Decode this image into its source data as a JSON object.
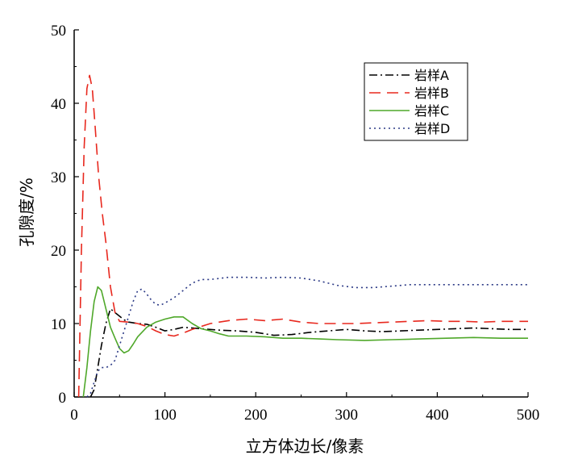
{
  "chart_data": {
    "type": "line",
    "xlabel": "立方体边长/像素",
    "ylabel": "孔隙度/%",
    "xlim": [
      0,
      500
    ],
    "ylim": [
      0,
      50
    ],
    "xticks": [
      "0",
      "100",
      "200",
      "300",
      "400",
      "500"
    ],
    "yticks": [
      "0",
      "10",
      "20",
      "30",
      "40",
      "50"
    ],
    "grid": false,
    "legend_position": "top-right",
    "series": [
      {
        "name": "岩样A",
        "color": "#000000",
        "dash": "dashdot",
        "points": [
          [
            18,
            0
          ],
          [
            22,
            1
          ],
          [
            26,
            4
          ],
          [
            30,
            7
          ],
          [
            35,
            10
          ],
          [
            40,
            12
          ],
          [
            45,
            11.5
          ],
          [
            50,
            11
          ],
          [
            55,
            10.5
          ],
          [
            60,
            10.2
          ],
          [
            70,
            10
          ],
          [
            80,
            9.9
          ],
          [
            90,
            9.5
          ],
          [
            100,
            9
          ],
          [
            110,
            9.2
          ],
          [
            120,
            9.5
          ],
          [
            130,
            9.4
          ],
          [
            140,
            9.3
          ],
          [
            160,
            9.1
          ],
          [
            180,
            9
          ],
          [
            200,
            8.8
          ],
          [
            220,
            8.4
          ],
          [
            240,
            8.5
          ],
          [
            260,
            8.8
          ],
          [
            280,
            9
          ],
          [
            300,
            9.2
          ],
          [
            320,
            9
          ],
          [
            340,
            8.9
          ],
          [
            360,
            9
          ],
          [
            380,
            9.1
          ],
          [
            400,
            9.2
          ],
          [
            420,
            9.3
          ],
          [
            440,
            9.4
          ],
          [
            460,
            9.3
          ],
          [
            480,
            9.2
          ],
          [
            500,
            9.2
          ]
        ]
      },
      {
        "name": "岩样B",
        "color": "#e8281e",
        "dash": "dashed",
        "points": [
          [
            5,
            0
          ],
          [
            8,
            20
          ],
          [
            11,
            34
          ],
          [
            14,
            42
          ],
          [
            17,
            43.8
          ],
          [
            20,
            42
          ],
          [
            23,
            37
          ],
          [
            27,
            30
          ],
          [
            31,
            25
          ],
          [
            35,
            21
          ],
          [
            40,
            15
          ],
          [
            45,
            11.5
          ],
          [
            50,
            10.3
          ],
          [
            60,
            10.2
          ],
          [
            70,
            10
          ],
          [
            80,
            9.6
          ],
          [
            90,
            9
          ],
          [
            100,
            8.5
          ],
          [
            110,
            8.3
          ],
          [
            120,
            8.7
          ],
          [
            130,
            9.2
          ],
          [
            140,
            9.6
          ],
          [
            150,
            10
          ],
          [
            170,
            10.4
          ],
          [
            190,
            10.6
          ],
          [
            210,
            10.4
          ],
          [
            230,
            10.6
          ],
          [
            250,
            10.2
          ],
          [
            270,
            10
          ],
          [
            290,
            10
          ],
          [
            310,
            10
          ],
          [
            330,
            10.1
          ],
          [
            350,
            10.2
          ],
          [
            370,
            10.3
          ],
          [
            390,
            10.4
          ],
          [
            410,
            10.3
          ],
          [
            430,
            10.3
          ],
          [
            450,
            10.2
          ],
          [
            470,
            10.3
          ],
          [
            500,
            10.3
          ]
        ]
      },
      {
        "name": "岩样C",
        "color": "#4fa82a",
        "dash": "solid",
        "points": [
          [
            10,
            0
          ],
          [
            14,
            4
          ],
          [
            18,
            9
          ],
          [
            22,
            13
          ],
          [
            26,
            15
          ],
          [
            30,
            14.5
          ],
          [
            35,
            12
          ],
          [
            40,
            9.5
          ],
          [
            45,
            8
          ],
          [
            50,
            6.6
          ],
          [
            55,
            6
          ],
          [
            60,
            6.3
          ],
          [
            65,
            7.2
          ],
          [
            70,
            8.2
          ],
          [
            80,
            9.5
          ],
          [
            90,
            10.2
          ],
          [
            100,
            10.6
          ],
          [
            110,
            10.9
          ],
          [
            120,
            10.9
          ],
          [
            130,
            10
          ],
          [
            140,
            9.3
          ],
          [
            150,
            9
          ],
          [
            160,
            8.6
          ],
          [
            170,
            8.3
          ],
          [
            190,
            8.3
          ],
          [
            210,
            8.2
          ],
          [
            230,
            8
          ],
          [
            250,
            8
          ],
          [
            270,
            7.9
          ],
          [
            290,
            7.8
          ],
          [
            320,
            7.7
          ],
          [
            350,
            7.8
          ],
          [
            380,
            7.9
          ],
          [
            410,
            8
          ],
          [
            440,
            8.1
          ],
          [
            470,
            8
          ],
          [
            500,
            8
          ]
        ]
      },
      {
        "name": "岩样D",
        "color": "#2c3a86",
        "dash": "dotted",
        "points": [
          [
            14,
            0
          ],
          [
            18,
            0.5
          ],
          [
            22,
            2
          ],
          [
            26,
            3.5
          ],
          [
            30,
            4
          ],
          [
            35,
            4
          ],
          [
            40,
            4.3
          ],
          [
            45,
            5
          ],
          [
            50,
            7
          ],
          [
            55,
            9
          ],
          [
            60,
            11
          ],
          [
            65,
            13
          ],
          [
            70,
            14.5
          ],
          [
            75,
            14.7
          ],
          [
            80,
            14
          ],
          [
            85,
            13.2
          ],
          [
            90,
            12.6
          ],
          [
            95,
            12.5
          ],
          [
            100,
            12.8
          ],
          [
            110,
            13.5
          ],
          [
            120,
            14.5
          ],
          [
            130,
            15.5
          ],
          [
            140,
            16
          ],
          [
            150,
            16
          ],
          [
            170,
            16.3
          ],
          [
            190,
            16.3
          ],
          [
            210,
            16.2
          ],
          [
            230,
            16.3
          ],
          [
            250,
            16.2
          ],
          [
            270,
            15.8
          ],
          [
            290,
            15.2
          ],
          [
            310,
            14.9
          ],
          [
            330,
            14.9
          ],
          [
            350,
            15.1
          ],
          [
            370,
            15.3
          ],
          [
            390,
            15.3
          ],
          [
            420,
            15.3
          ],
          [
            450,
            15.3
          ],
          [
            480,
            15.3
          ],
          [
            500,
            15.3
          ]
        ]
      }
    ]
  }
}
